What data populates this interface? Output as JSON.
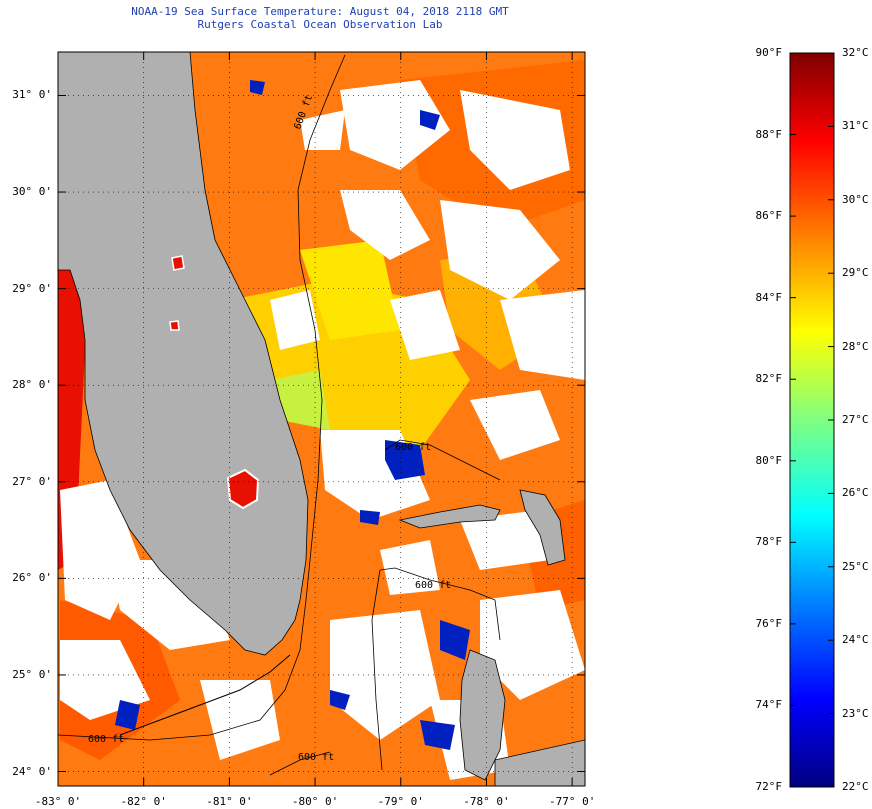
{
  "title": "NOAA-19 Sea Surface Temperature:  August 04, 2018 2118 GMT",
  "subtitle": "Rutgers Coastal Ocean Observation Lab",
  "lat_labels": [
    "31° 0'",
    "30° 0'",
    "29° 0'",
    "28° 0'",
    "27° 0'",
    "26° 0'",
    "25° 0'",
    "24° 0'"
  ],
  "lat_values": [
    31,
    30,
    29,
    28,
    27,
    26,
    25,
    24
  ],
  "lon_labels": [
    "-83° 0'",
    "-82° 0'",
    "-81° 0'",
    "-80° 0'",
    "-79° 0'",
    "-78° 0'",
    "-77° 0'"
  ],
  "lon_values": [
    -83,
    -82,
    -81,
    -80,
    -79,
    -78,
    -77
  ],
  "bounds": {
    "lon_min": -83,
    "lon_max": -76.85,
    "lat_min": 23.85,
    "lat_max": 31.45
  },
  "isobath_labels": [
    "600 ft",
    "600 ft",
    "600 ft",
    "600 ft",
    "600 ft"
  ],
  "colorbar": {
    "fahrenheit_labels": [
      "90°F",
      "88°F",
      "86°F",
      "84°F",
      "82°F",
      "80°F",
      "78°F",
      "76°F",
      "74°F",
      "72°F"
    ],
    "celsius_labels": [
      "32°C",
      "31°C",
      "30°C",
      "29°C",
      "28°C",
      "27°C",
      "26°C",
      "25°C",
      "24°C",
      "23°C",
      "22°C"
    ],
    "range_f": [
      72,
      90
    ],
    "range_c": [
      22,
      32
    ],
    "colors": [
      "#000080",
      "#0000ff",
      "#0080ff",
      "#00ffff",
      "#80ff80",
      "#ffff00",
      "#ff8000",
      "#ff0000",
      "#800000"
    ]
  },
  "colors": {
    "land": "#b0b0b0",
    "cloud": "#ffffff",
    "title": "#1e3fb3"
  }
}
